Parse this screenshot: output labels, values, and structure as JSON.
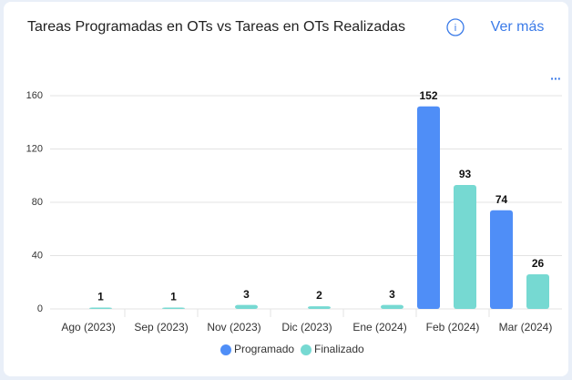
{
  "chart_data": {
    "type": "bar",
    "title": "Tareas Programadas en OTs vs Tareas en OTs Realizadas",
    "categories": [
      "Ago (2023)",
      "Sep (2023)",
      "Nov (2023)",
      "Dic (2023)",
      "Ene (2024)",
      "Feb (2024)",
      "Mar (2024)"
    ],
    "series": [
      {
        "name": "Programado",
        "color": "#4f8ef7",
        "values": [
          null,
          null,
          null,
          null,
          null,
          152,
          74
        ]
      },
      {
        "name": "Finalizado",
        "color": "#76d9d2",
        "values": [
          1,
          1,
          3,
          2,
          3,
          93,
          26
        ]
      }
    ],
    "ylim": [
      0,
      160
    ],
    "yticks": [
      0,
      40,
      80,
      120,
      160
    ],
    "grid": true,
    "legend": "bottom"
  },
  "actions": {
    "more": "Ver más",
    "menu": "..."
  }
}
